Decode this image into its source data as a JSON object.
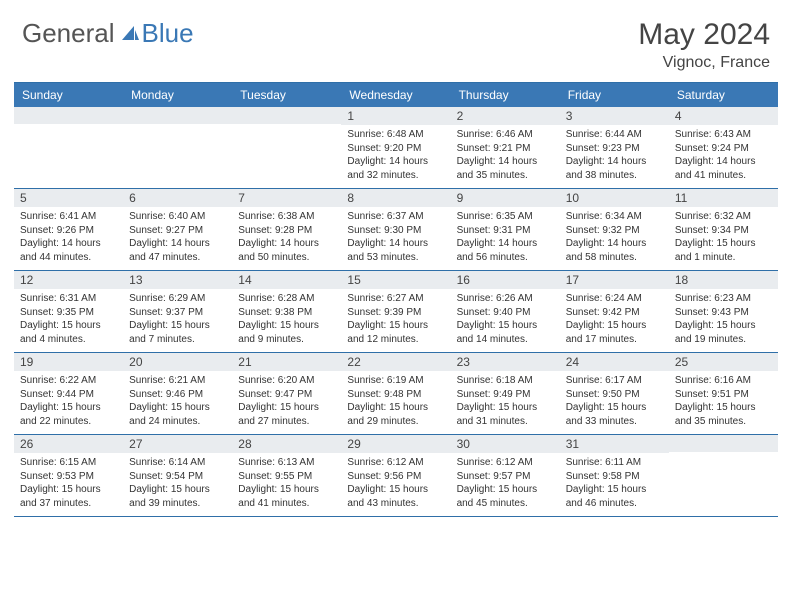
{
  "logo": {
    "text_general": "General",
    "text_blue": "Blue",
    "icon_color": "#3a78b5"
  },
  "header": {
    "month_title": "May 2024",
    "location": "Vignoc, France"
  },
  "colors": {
    "header_bg": "#3a78b5",
    "border": "#2f6fa8",
    "daynum_bg": "#e9ecef",
    "text_dark": "#444444",
    "text_body": "#333333"
  },
  "weekdays": [
    "Sunday",
    "Monday",
    "Tuesday",
    "Wednesday",
    "Thursday",
    "Friday",
    "Saturday"
  ],
  "weeks": [
    [
      null,
      null,
      null,
      {
        "n": "1",
        "sr": "6:48 AM",
        "ss": "9:20 PM",
        "dl": "14 hours and 32 minutes."
      },
      {
        "n": "2",
        "sr": "6:46 AM",
        "ss": "9:21 PM",
        "dl": "14 hours and 35 minutes."
      },
      {
        "n": "3",
        "sr": "6:44 AM",
        "ss": "9:23 PM",
        "dl": "14 hours and 38 minutes."
      },
      {
        "n": "4",
        "sr": "6:43 AM",
        "ss": "9:24 PM",
        "dl": "14 hours and 41 minutes."
      }
    ],
    [
      {
        "n": "5",
        "sr": "6:41 AM",
        "ss": "9:26 PM",
        "dl": "14 hours and 44 minutes."
      },
      {
        "n": "6",
        "sr": "6:40 AM",
        "ss": "9:27 PM",
        "dl": "14 hours and 47 minutes."
      },
      {
        "n": "7",
        "sr": "6:38 AM",
        "ss": "9:28 PM",
        "dl": "14 hours and 50 minutes."
      },
      {
        "n": "8",
        "sr": "6:37 AM",
        "ss": "9:30 PM",
        "dl": "14 hours and 53 minutes."
      },
      {
        "n": "9",
        "sr": "6:35 AM",
        "ss": "9:31 PM",
        "dl": "14 hours and 56 minutes."
      },
      {
        "n": "10",
        "sr": "6:34 AM",
        "ss": "9:32 PM",
        "dl": "14 hours and 58 minutes."
      },
      {
        "n": "11",
        "sr": "6:32 AM",
        "ss": "9:34 PM",
        "dl": "15 hours and 1 minute."
      }
    ],
    [
      {
        "n": "12",
        "sr": "6:31 AM",
        "ss": "9:35 PM",
        "dl": "15 hours and 4 minutes."
      },
      {
        "n": "13",
        "sr": "6:29 AM",
        "ss": "9:37 PM",
        "dl": "15 hours and 7 minutes."
      },
      {
        "n": "14",
        "sr": "6:28 AM",
        "ss": "9:38 PM",
        "dl": "15 hours and 9 minutes."
      },
      {
        "n": "15",
        "sr": "6:27 AM",
        "ss": "9:39 PM",
        "dl": "15 hours and 12 minutes."
      },
      {
        "n": "16",
        "sr": "6:26 AM",
        "ss": "9:40 PM",
        "dl": "15 hours and 14 minutes."
      },
      {
        "n": "17",
        "sr": "6:24 AM",
        "ss": "9:42 PM",
        "dl": "15 hours and 17 minutes."
      },
      {
        "n": "18",
        "sr": "6:23 AM",
        "ss": "9:43 PM",
        "dl": "15 hours and 19 minutes."
      }
    ],
    [
      {
        "n": "19",
        "sr": "6:22 AM",
        "ss": "9:44 PM",
        "dl": "15 hours and 22 minutes."
      },
      {
        "n": "20",
        "sr": "6:21 AM",
        "ss": "9:46 PM",
        "dl": "15 hours and 24 minutes."
      },
      {
        "n": "21",
        "sr": "6:20 AM",
        "ss": "9:47 PM",
        "dl": "15 hours and 27 minutes."
      },
      {
        "n": "22",
        "sr": "6:19 AM",
        "ss": "9:48 PM",
        "dl": "15 hours and 29 minutes."
      },
      {
        "n": "23",
        "sr": "6:18 AM",
        "ss": "9:49 PM",
        "dl": "15 hours and 31 minutes."
      },
      {
        "n": "24",
        "sr": "6:17 AM",
        "ss": "9:50 PM",
        "dl": "15 hours and 33 minutes."
      },
      {
        "n": "25",
        "sr": "6:16 AM",
        "ss": "9:51 PM",
        "dl": "15 hours and 35 minutes."
      }
    ],
    [
      {
        "n": "26",
        "sr": "6:15 AM",
        "ss": "9:53 PM",
        "dl": "15 hours and 37 minutes."
      },
      {
        "n": "27",
        "sr": "6:14 AM",
        "ss": "9:54 PM",
        "dl": "15 hours and 39 minutes."
      },
      {
        "n": "28",
        "sr": "6:13 AM",
        "ss": "9:55 PM",
        "dl": "15 hours and 41 minutes."
      },
      {
        "n": "29",
        "sr": "6:12 AM",
        "ss": "9:56 PM",
        "dl": "15 hours and 43 minutes."
      },
      {
        "n": "30",
        "sr": "6:12 AM",
        "ss": "9:57 PM",
        "dl": "15 hours and 45 minutes."
      },
      {
        "n": "31",
        "sr": "6:11 AM",
        "ss": "9:58 PM",
        "dl": "15 hours and 46 minutes."
      },
      null
    ]
  ],
  "labels": {
    "sunrise": "Sunrise:",
    "sunset": "Sunset:",
    "daylight": "Daylight:"
  }
}
